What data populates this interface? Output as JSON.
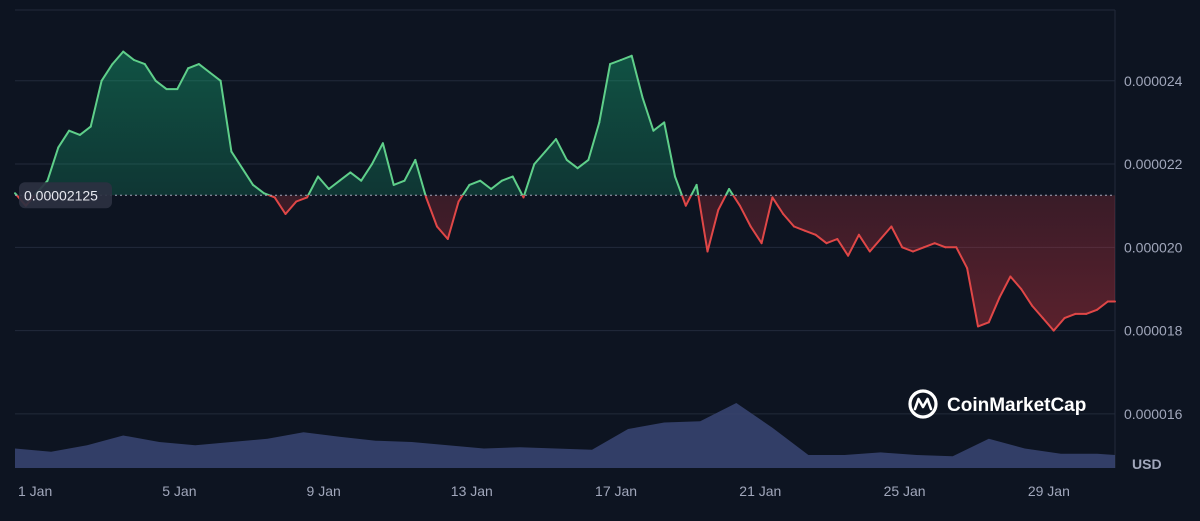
{
  "chart_data": {
    "type": "area",
    "currency_unit": "USD",
    "baseline_value": 2.125e-05,
    "baseline_label": "0.00002125",
    "ylim": [
      1.47e-05,
      2.57e-05
    ],
    "y_ticks": [
      {
        "value": 1.6e-05,
        "label": "0.000016"
      },
      {
        "value": 1.8e-05,
        "label": "0.000018"
      },
      {
        "value": 2e-05,
        "label": "0.000020"
      },
      {
        "value": 2.2e-05,
        "label": "0.000022"
      },
      {
        "value": 2.4e-05,
        "label": "0.000024"
      }
    ],
    "x_range": [
      1,
      31.5
    ],
    "x_ticks": [
      {
        "day": 1,
        "label": "1 Jan"
      },
      {
        "day": 5,
        "label": "5 Jan"
      },
      {
        "day": 9,
        "label": "9 Jan"
      },
      {
        "day": 13,
        "label": "13 Jan"
      },
      {
        "day": 17,
        "label": "17 Jan"
      },
      {
        "day": 21,
        "label": "21 Jan"
      },
      {
        "day": 25,
        "label": "25 Jan"
      },
      {
        "day": 29,
        "label": "29 Jan"
      }
    ],
    "price_series": {
      "day": [
        1.0,
        1.3,
        1.6,
        1.9,
        2.2,
        2.5,
        2.8,
        3.1,
        3.4,
        3.7,
        4.0,
        4.3,
        4.6,
        4.9,
        5.2,
        5.5,
        5.8,
        6.1,
        6.4,
        6.7,
        7.0,
        7.3,
        7.6,
        7.9,
        8.2,
        8.5,
        8.8,
        9.1,
        9.4,
        9.7,
        10.0,
        10.3,
        10.6,
        10.9,
        11.2,
        11.5,
        11.8,
        12.1,
        12.4,
        12.7,
        13.0,
        13.3,
        13.6,
        13.9,
        14.2,
        14.5,
        14.8,
        15.1,
        15.4,
        15.7,
        16.0,
        16.3,
        16.6,
        16.9,
        17.2,
        17.5,
        17.8,
        18.1,
        18.4,
        18.7,
        19.0,
        19.3,
        19.6,
        19.9,
        20.2,
        20.5,
        20.8,
        21.1,
        21.4,
        21.7,
        22.0,
        22.3,
        22.6,
        22.9,
        23.2,
        23.5,
        23.8,
        24.1,
        24.4,
        24.7,
        25.0,
        25.3,
        25.6,
        25.9,
        26.2,
        26.5,
        26.8,
        27.1,
        27.4,
        27.7,
        28.0,
        28.3,
        28.6,
        28.9,
        29.2,
        29.5,
        29.8,
        30.1,
        30.4,
        30.7,
        31.0,
        31.3,
        31.5
      ],
      "price": [
        2.13e-05,
        2.1e-05,
        2.13e-05,
        2.16e-05,
        2.24e-05,
        2.28e-05,
        2.27e-05,
        2.29e-05,
        2.4e-05,
        2.44e-05,
        2.47e-05,
        2.45e-05,
        2.44e-05,
        2.4e-05,
        2.38e-05,
        2.38e-05,
        2.43e-05,
        2.44e-05,
        2.42e-05,
        2.4e-05,
        2.23e-05,
        2.19e-05,
        2.15e-05,
        2.13e-05,
        2.12e-05,
        2.08e-05,
        2.11e-05,
        2.12e-05,
        2.17e-05,
        2.14e-05,
        2.16e-05,
        2.18e-05,
        2.16e-05,
        2.2e-05,
        2.25e-05,
        2.15e-05,
        2.16e-05,
        2.21e-05,
        2.12e-05,
        2.05e-05,
        2.02e-05,
        2.11e-05,
        2.15e-05,
        2.16e-05,
        2.14e-05,
        2.16e-05,
        2.17e-05,
        2.12e-05,
        2.2e-05,
        2.23e-05,
        2.26e-05,
        2.21e-05,
        2.19e-05,
        2.21e-05,
        2.3e-05,
        2.44e-05,
        2.45e-05,
        2.46e-05,
        2.36e-05,
        2.28e-05,
        2.3e-05,
        2.17e-05,
        2.1e-05,
        2.15e-05,
        1.99e-05,
        2.09e-05,
        2.14e-05,
        2.1e-05,
        2.05e-05,
        2.01e-05,
        2.12e-05,
        2.08e-05,
        2.05e-05,
        2.04e-05,
        2.03e-05,
        2.01e-05,
        2.02e-05,
        1.98e-05,
        2.03e-05,
        1.99e-05,
        2.02e-05,
        2.05e-05,
        2e-05,
        1.99e-05,
        2e-05,
        2.01e-05,
        2e-05,
        2e-05,
        1.95e-05,
        1.81e-05,
        1.82e-05,
        1.88e-05,
        1.93e-05,
        1.9e-05,
        1.86e-05,
        1.83e-05,
        1.8e-05,
        1.83e-05,
        1.84e-05,
        1.84e-05,
        1.85e-05,
        1.87e-05,
        1.87e-05
      ]
    },
    "volume_series": {
      "day": [
        1,
        2,
        3,
        4,
        5,
        6,
        7,
        8,
        9,
        10,
        11,
        12,
        13,
        14,
        15,
        16,
        17,
        18,
        19,
        20,
        21,
        22,
        23,
        24,
        25,
        26,
        27,
        28,
        29,
        30,
        31,
        31.5
      ],
      "volume": [
        0.3,
        0.25,
        0.35,
        0.5,
        0.4,
        0.35,
        0.4,
        0.45,
        0.55,
        0.48,
        0.42,
        0.4,
        0.35,
        0.3,
        0.32,
        0.3,
        0.28,
        0.6,
        0.7,
        0.72,
        1.0,
        0.62,
        0.2,
        0.2,
        0.24,
        0.2,
        0.18,
        0.45,
        0.3,
        0.22,
        0.22,
        0.2
      ]
    },
    "colors": {
      "up": "#16c784",
      "down": "#ea3943",
      "line_up": "#5fcf8a",
      "line_down": "#e04747",
      "grid": "#222a3b",
      "baseline": "#a1a7bb",
      "volume": "#3a4573"
    },
    "grid": true
  },
  "brand": {
    "name": "CoinMarketCap",
    "icon": "coinmarketcap-logo-icon"
  }
}
